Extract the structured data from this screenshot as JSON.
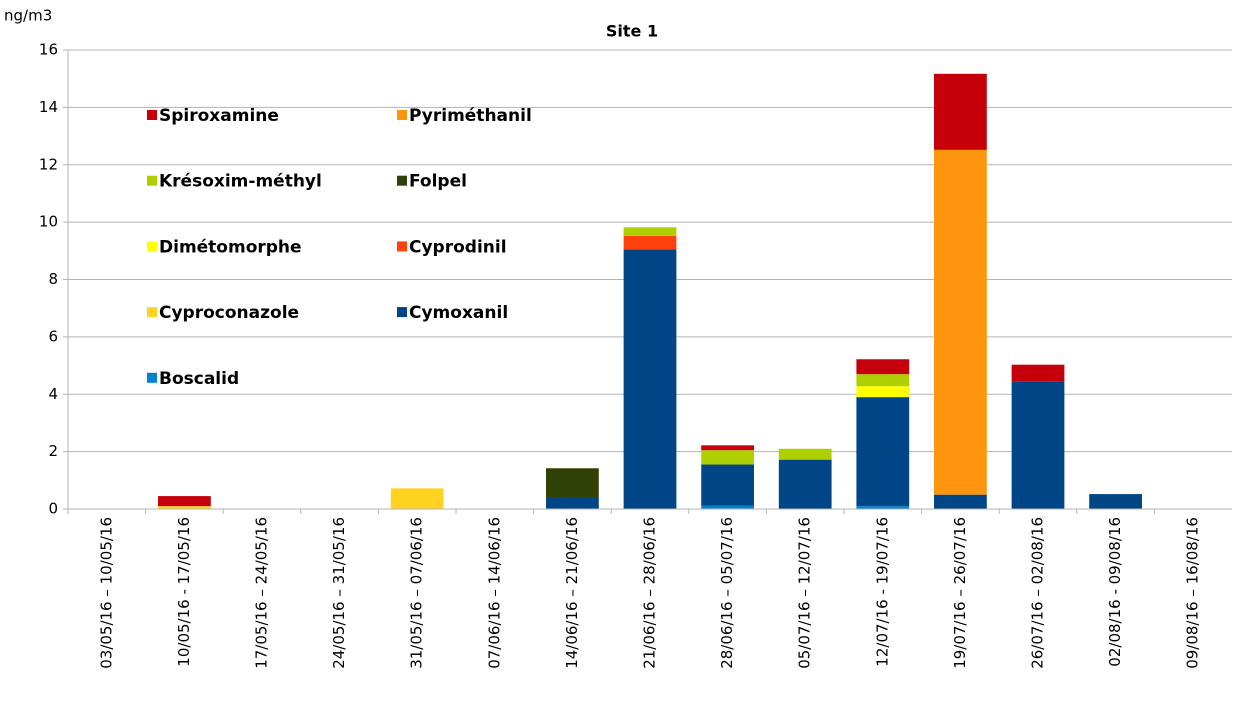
{
  "chart_data": {
    "type": "stacked_bar",
    "subtitle": "Site 1",
    "y_label": "ng/m3",
    "categories": [
      "03/05/16 – 10/05/16",
      "10/05/16 - 17/05/16",
      "17/05/16 – 24/05/16",
      "24/05/16 – 31/05/16",
      "31/05/16 – 07/06/16",
      "07/06/16 – 14/06/16",
      "14/06/16 – 21/06/16",
      "21/06/16 – 28/06/16",
      "28/06/16 – 05/07/16",
      "05/07/16 – 12/07/16",
      "12/07/16 - 19/07/16",
      "19/07/16 – 26/07/16",
      "26/07/16 – 02/08/16",
      "02/08/16 - 09/08/16",
      "09/08/16 – 16/08/16"
    ],
    "series": [
      {
        "name": "Boscalid",
        "color": "#0084d1",
        "values": [
          0,
          0,
          0,
          0,
          0,
          0,
          0,
          0,
          0.12,
          0,
          0.1,
          0,
          0,
          0,
          0
        ]
      },
      {
        "name": "Cymoxanil",
        "color": "#004586",
        "values": [
          0,
          0,
          0,
          0,
          0,
          0,
          0.4,
          9.05,
          1.43,
          1.72,
          3.8,
          0.5,
          4.45,
          0.52,
          0
        ]
      },
      {
        "name": "Cyproconazole",
        "color": "#ffd320",
        "values": [
          0,
          0.1,
          0,
          0,
          0.72,
          0,
          0,
          0,
          0,
          0,
          0,
          0,
          0,
          0,
          0
        ]
      },
      {
        "name": "Cyprodinil",
        "color": "#ff420e",
        "values": [
          0,
          0,
          0,
          0,
          0,
          0,
          0,
          0.47,
          0,
          0,
          0,
          0,
          0,
          0,
          0
        ]
      },
      {
        "name": "Dimétomorphe",
        "color": "#ffff00",
        "values": [
          0,
          0,
          0,
          0,
          0,
          0,
          0,
          0,
          0,
          0,
          0.38,
          0,
          0,
          0,
          0
        ]
      },
      {
        "name": "Folpel",
        "color": "#314004",
        "values": [
          0,
          0,
          0,
          0,
          0,
          0,
          1.02,
          0,
          0,
          0,
          0,
          0,
          0,
          0,
          0
        ]
      },
      {
        "name": "Krésoxim-méthyl",
        "color": "#aecf00",
        "values": [
          0,
          0,
          0,
          0,
          0,
          0,
          0,
          0.3,
          0.5,
          0.38,
          0.42,
          0,
          0,
          0,
          0
        ]
      },
      {
        "name": "Pyriméthanil",
        "color": "#ff950e",
        "values": [
          0,
          0,
          0,
          0,
          0,
          0,
          0,
          0,
          0,
          0,
          0,
          12.02,
          0,
          0,
          0
        ]
      },
      {
        "name": "Spiroxamine",
        "color": "#c5000b",
        "values": [
          0,
          0.35,
          0,
          0,
          0,
          0,
          0,
          0,
          0.17,
          0,
          0.52,
          2.65,
          0.58,
          0,
          0
        ]
      }
    ],
    "ylim": [
      0,
      16
    ],
    "yticks": [
      0,
      2,
      4,
      6,
      8,
      10,
      12,
      14,
      16
    ],
    "grid": true
  }
}
